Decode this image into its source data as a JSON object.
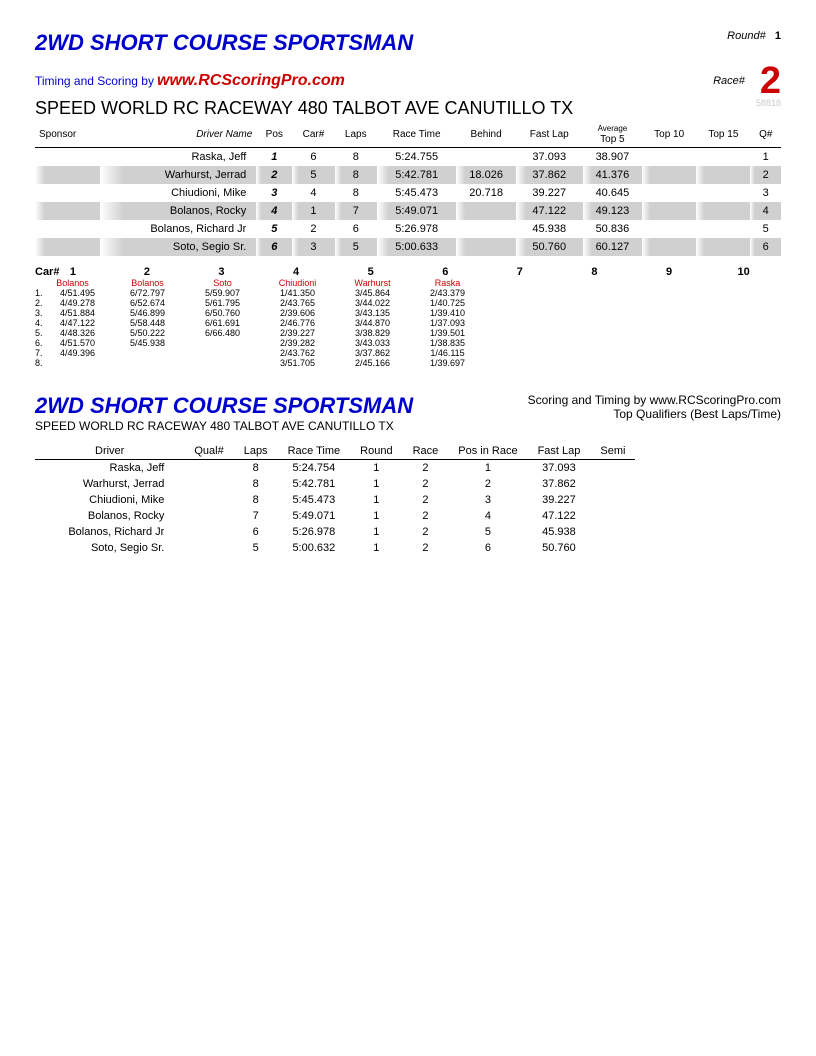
{
  "title": "2WD SHORT COURSE SPORTSMAN",
  "round_label": "Round#",
  "round_num": "1",
  "race_label": "Race#",
  "race_num": "2",
  "timing_by": "Timing and Scoring by",
  "website": "www.RCScoringPro.com",
  "venue": "SPEED WORLD RC RACEWAY 480 TALBOT AVE CANUTILLO TX",
  "serial": "58818",
  "results": {
    "headers": [
      "Sponsor",
      "Driver Name",
      "Pos",
      "Car#",
      "Laps",
      "Race Time",
      "Behind",
      "Fast Lap",
      "Average Top 5",
      "Top 10",
      "Top 15",
      "Q#"
    ],
    "rows": [
      {
        "driver": "Raska, Jeff",
        "pos": "1",
        "car": "6",
        "laps": "8",
        "time": "5:24.755",
        "behind": "",
        "fast": "37.093",
        "top5": "38.907",
        "top10": "",
        "top15": "",
        "q": "1",
        "shaded": false
      },
      {
        "driver": "Warhurst, Jerrad",
        "pos": "2",
        "car": "5",
        "laps": "8",
        "time": "5:42.781",
        "behind": "18.026",
        "fast": "37.862",
        "top5": "41.376",
        "top10": "",
        "top15": "",
        "q": "2",
        "shaded": true
      },
      {
        "driver": "Chiudioni, Mike",
        "pos": "3",
        "car": "4",
        "laps": "8",
        "time": "5:45.473",
        "behind": "20.718",
        "fast": "39.227",
        "top5": "40.645",
        "top10": "",
        "top15": "",
        "q": "3",
        "shaded": false
      },
      {
        "driver": "Bolanos, Rocky",
        "pos": "4",
        "car": "1",
        "laps": "7",
        "time": "5:49.071",
        "behind": "",
        "fast": "47.122",
        "top5": "49.123",
        "top10": "",
        "top15": "",
        "q": "4",
        "shaded": true
      },
      {
        "driver": "Bolanos, Richard Jr",
        "pos": "5",
        "car": "2",
        "laps": "6",
        "time": "5:26.978",
        "behind": "",
        "fast": "45.938",
        "top5": "50.836",
        "top10": "",
        "top15": "",
        "q": "5",
        "shaded": false
      },
      {
        "driver": "Soto, Segio Sr.",
        "pos": "6",
        "car": "3",
        "laps": "5",
        "time": "5:00.633",
        "behind": "",
        "fast": "50.760",
        "top5": "60.127",
        "top10": "",
        "top15": "",
        "q": "6",
        "shaded": true
      }
    ]
  },
  "lap_section": {
    "car_label": "Car#",
    "cars": [
      "1",
      "2",
      "3",
      "4",
      "5",
      "6",
      "7",
      "8",
      "9",
      "10"
    ],
    "names": [
      "Bolanos",
      "Bolanos",
      "Soto",
      "Chiudioni",
      "Warhurst",
      "Raska"
    ],
    "laps": [
      {
        "n": "1.",
        "d": [
          "4/51.495",
          "6/72.797",
          "5/59.907",
          "1/41.350",
          "3/45.864",
          "2/43.379"
        ]
      },
      {
        "n": "2.",
        "d": [
          "4/49.278",
          "6/52.674",
          "5/61.795",
          "2/43.765",
          "3/44.022",
          "1/40.725"
        ]
      },
      {
        "n": "3.",
        "d": [
          "4/51.884",
          "5/46.899",
          "6/50.760",
          "2/39.606",
          "3/43.135",
          "1/39.410"
        ]
      },
      {
        "n": "4.",
        "d": [
          "4/47.122",
          "5/58.448",
          "6/61.691",
          "2/46.776",
          "3/44.870",
          "1/37.093"
        ]
      },
      {
        "n": "5.",
        "d": [
          "4/48.326",
          "5/50.222",
          "6/66.480",
          "2/39.227",
          "3/38.829",
          "1/39.501"
        ]
      },
      {
        "n": "6.",
        "d": [
          "4/51.570",
          "5/45.938",
          "",
          "2/39.282",
          "3/43.033",
          "1/38.835"
        ]
      },
      {
        "n": "7.",
        "d": [
          "4/49.396",
          "",
          "",
          "2/43.762",
          "3/37.862",
          "1/46.115"
        ]
      },
      {
        "n": "8.",
        "d": [
          "",
          "",
          "",
          "3/51.705",
          "2/45.166",
          "1/39.697"
        ]
      }
    ]
  },
  "section2": {
    "scoring": "Scoring and Timing by www.RCScoringPro.com",
    "subtitle": "Top Qualifiers (Best Laps/Time)",
    "headers": [
      "Driver",
      "Qual#",
      "Laps",
      "Race Time",
      "Round",
      "Race",
      "Pos in Race",
      "Fast Lap",
      "Semi"
    ],
    "rows": [
      {
        "driver": "Raska, Jeff",
        "qual": "",
        "laps": "8",
        "time": "5:24.754",
        "round": "1",
        "race": "2",
        "pos": "1",
        "fast": "37.093",
        "semi": ""
      },
      {
        "driver": "Warhurst, Jerrad",
        "qual": "",
        "laps": "8",
        "time": "5:42.781",
        "round": "1",
        "race": "2",
        "pos": "2",
        "fast": "37.862",
        "semi": ""
      },
      {
        "driver": "Chiudioni, Mike",
        "qual": "",
        "laps": "8",
        "time": "5:45.473",
        "round": "1",
        "race": "2",
        "pos": "3",
        "fast": "39.227",
        "semi": ""
      },
      {
        "driver": "Bolanos, Rocky",
        "qual": "",
        "laps": "7",
        "time": "5:49.071",
        "round": "1",
        "race": "2",
        "pos": "4",
        "fast": "47.122",
        "semi": ""
      },
      {
        "driver": "Bolanos, Richard Jr",
        "qual": "",
        "laps": "6",
        "time": "5:26.978",
        "round": "1",
        "race": "2",
        "pos": "5",
        "fast": "45.938",
        "semi": ""
      },
      {
        "driver": "Soto, Segio Sr.",
        "qual": "",
        "laps": "5",
        "time": "5:00.632",
        "round": "1",
        "race": "2",
        "pos": "6",
        "fast": "50.760",
        "semi": ""
      }
    ]
  }
}
